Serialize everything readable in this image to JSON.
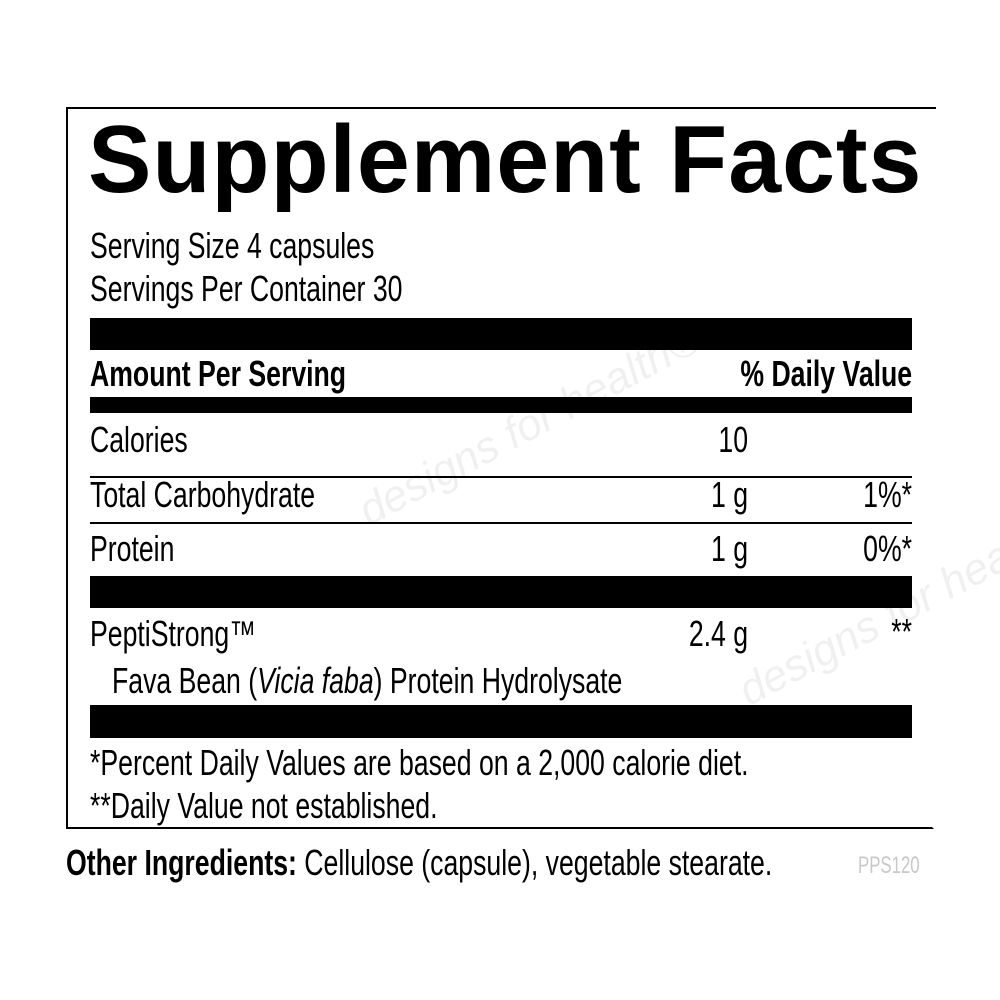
{
  "title": "Supplement Facts",
  "serving_size": "Serving Size 4 capsules",
  "servings_per_container": "Servings Per Container 30",
  "header": {
    "amount": "Amount Per Serving",
    "dv": "% Daily Value"
  },
  "rows": [
    {
      "name": "Calories",
      "amount": "10",
      "dv": ""
    },
    {
      "name": "Total Carbohydrate",
      "amount": "1 g",
      "dv": "1%*"
    },
    {
      "name": "Protein",
      "amount": "1 g",
      "dv": "0%*"
    },
    {
      "name": "PeptiStrong™",
      "amount": "2.4 g",
      "dv": "**"
    }
  ],
  "sub_ingredient": {
    "prefix": "Fava Bean (",
    "italic": "Vicia faba",
    "suffix": ") Protein Hydrolysate"
  },
  "footnotes": [
    "*Percent Daily Values are based on a 2,000 calorie diet.",
    "**Daily Value not established."
  ],
  "other_ingredients": {
    "label": "Other Ingredients:",
    "text": " Cellulose (capsule), vegetable stearate."
  },
  "product_code": "PPS120",
  "watermark": "designs for health®"
}
